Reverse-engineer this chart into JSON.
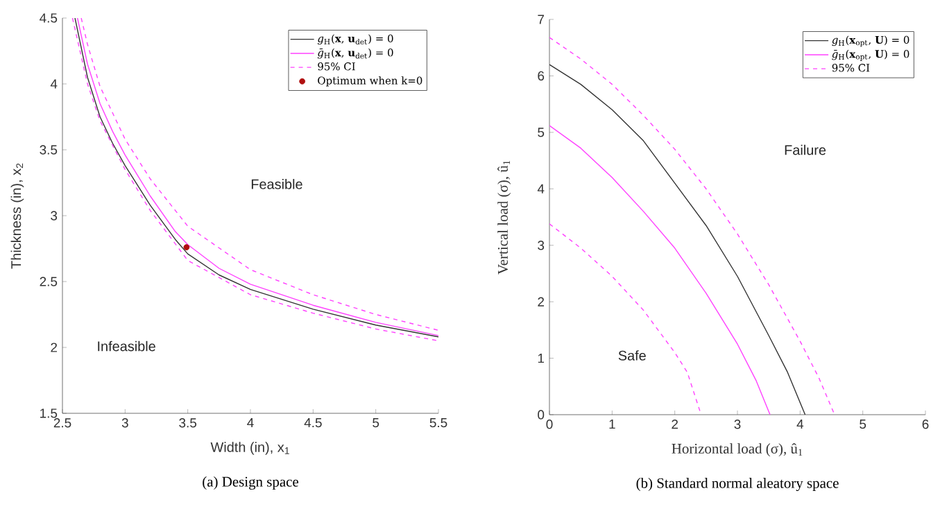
{
  "chart_data": [
    {
      "type": "line",
      "xlabel": "Width (in), x$_{1}$",
      "ylabel": "Thickness (in), x$_{2}$",
      "xlim": [
        2.5,
        5.5
      ],
      "ylim": [
        1.5,
        4.5
      ],
      "xticks": [
        2.5,
        3,
        3.5,
        4,
        4.5,
        5,
        5.5
      ],
      "yticks": [
        1.5,
        2,
        2.5,
        3,
        3.5,
        4,
        4.5
      ],
      "legend": "top right",
      "series": [
        {
          "name": "*g*$_{H}$(**x**, **u**$_{det}$) = 0",
          "color": "#333333",
          "line_style": "solid",
          "x": [
            2.6,
            2.7,
            2.8,
            2.9,
            3.0,
            3.2,
            3.4,
            3.5,
            3.75,
            4.0,
            4.5,
            5.0,
            5.5
          ],
          "values": [
            4.5,
            4.05,
            3.75,
            3.55,
            3.38,
            3.08,
            2.82,
            2.71,
            2.55,
            2.44,
            2.29,
            2.17,
            2.08
          ]
        },
        {
          "name": "*ḡ*$_{H}$(**x**, **u**$_{det}$) = 0",
          "color": "#ff40ff",
          "line_style": "solid",
          "x": [
            2.62,
            2.7,
            2.8,
            2.9,
            3.0,
            3.2,
            3.4,
            3.5,
            3.75,
            4.0,
            4.5,
            5.0,
            5.5
          ],
          "values": [
            4.5,
            4.15,
            3.85,
            3.64,
            3.46,
            3.15,
            2.88,
            2.78,
            2.6,
            2.48,
            2.32,
            2.19,
            2.09
          ]
        },
        {
          "name": "95% CI",
          "color": "#ff40ff",
          "line_style": "dashed",
          "x": [
            2.65,
            2.7,
            2.8,
            3.0,
            3.2,
            3.5,
            4.0,
            4.5,
            5.0,
            5.5
          ],
          "values": [
            4.5,
            4.3,
            3.98,
            3.58,
            3.28,
            2.92,
            2.59,
            2.4,
            2.25,
            2.13
          ]
        },
        {
          "color": "#ff40ff",
          "line_style": "dashed",
          "x": [
            2.58,
            2.7,
            2.8,
            3.0,
            3.2,
            3.5,
            4.0,
            4.5,
            5.0,
            5.5
          ],
          "values": [
            4.5,
            4.0,
            3.72,
            3.35,
            3.04,
            2.66,
            2.4,
            2.26,
            2.14,
            2.05
          ]
        },
        {
          "name": "Optimum when k=0",
          "type": "scatter",
          "color": "#b01010",
          "x": [
            3.49
          ],
          "values": [
            2.76
          ]
        }
      ],
      "annotations": [
        "Feasible",
        "Infeasible",
        "(a) Design space"
      ]
    },
    {
      "type": "line",
      "xlabel": "Horizontal load (σ), û$_{1}$",
      "ylabel": "Vertical load (σ), û$_{1}$",
      "xlim": [
        0,
        6
      ],
      "ylim": [
        0,
        7
      ],
      "xticks": [
        0,
        1,
        2,
        3,
        4,
        5,
        6
      ],
      "yticks": [
        0,
        1,
        2,
        3,
        4,
        5,
        6,
        7
      ],
      "legend": "top right",
      "series": [
        {
          "name": "*g*$_{H}$(**x**$_{opt}$, **U**) = 0",
          "color": "#333333",
          "line_style": "solid",
          "x": [
            0,
            0.5,
            1,
            1.5,
            2,
            2.5,
            3,
            3.5,
            3.8,
            4.08
          ],
          "values": [
            6.2,
            5.85,
            5.4,
            4.85,
            4.1,
            3.35,
            2.45,
            1.4,
            0.75,
            0
          ]
        },
        {
          "name": "*ḡ*$_{H}$(**x**$_{opt}$, **U**) = 0",
          "color": "#ff40ff",
          "line_style": "solid",
          "x": [
            0,
            0.5,
            1,
            1.5,
            2,
            2.5,
            3,
            3.3,
            3.52
          ],
          "values": [
            5.12,
            4.72,
            4.2,
            3.6,
            2.95,
            2.15,
            1.25,
            0.6,
            0
          ]
        },
        {
          "name": "95% CI",
          "color": "#ff40ff",
          "line_style": "dashed",
          "x": [
            0,
            0.5,
            1,
            1.5,
            2,
            2.5,
            3,
            3.5,
            4,
            4.3,
            4.55
          ],
          "values": [
            6.68,
            6.3,
            5.85,
            5.3,
            4.7,
            4.0,
            3.2,
            2.3,
            1.3,
            0.65,
            0
          ]
        },
        {
          "color": "#ff40ff",
          "line_style": "dashed",
          "x": [
            0,
            0.5,
            1,
            1.5,
            2,
            2.2,
            2.42
          ],
          "values": [
            3.38,
            2.95,
            2.45,
            1.85,
            1.1,
            0.75,
            0
          ]
        }
      ],
      "annotations": [
        "Failure",
        "Safe",
        "(b) Standard normal aleatory space"
      ]
    }
  ]
}
